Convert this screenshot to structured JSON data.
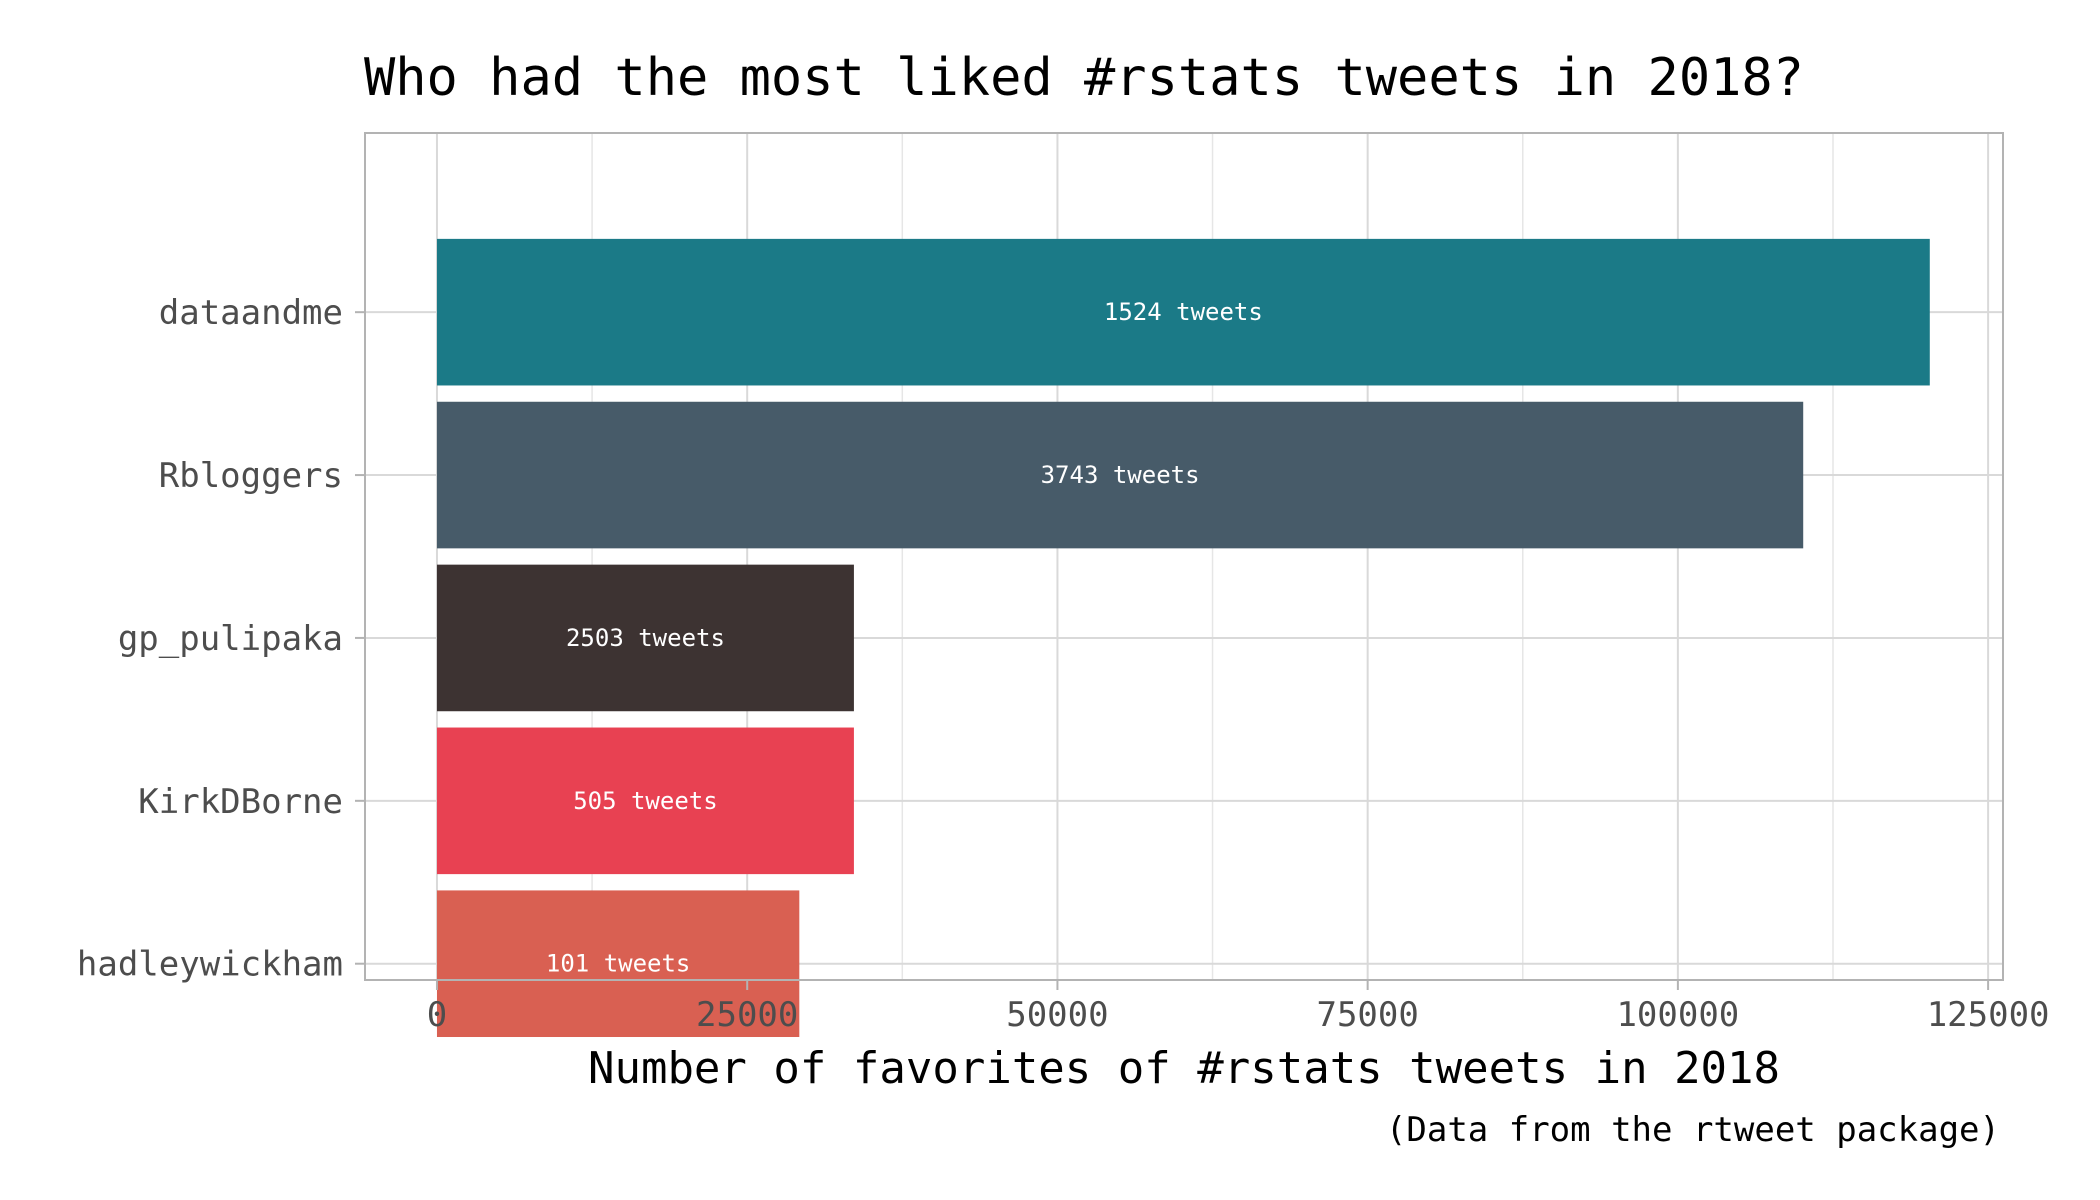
{
  "chart_data": {
    "type": "bar",
    "orientation": "horizontal",
    "title": "Who had the most liked #rstats tweets in 2018?",
    "xlabel": "Number of favorites of #rstats tweets in 2018",
    "ylabel": "",
    "caption": "(Data from the rtweet package)",
    "xlim": [
      -5800,
      126200
    ],
    "xticks": [
      "0",
      "25000",
      "50000",
      "75000",
      "100000",
      "125000"
    ],
    "xtick_values": [
      0,
      25000,
      50000,
      75000,
      100000,
      125000
    ],
    "grid": true,
    "legend": "none",
    "categories": [
      "dataandme",
      "Rbloggers",
      "gp_pulipaka",
      "KirkDBorne",
      "hadleywickham"
    ],
    "values": [
      120300,
      110100,
      33600,
      33600,
      29200
    ],
    "data_labels": [
      "1524 tweets",
      "3743 tweets",
      "2503 tweets",
      "505 tweets",
      "101 tweets"
    ],
    "colors": [
      "#1b7a87",
      "#475b69",
      "#3d3332",
      "#e84152",
      "#d96052"
    ]
  }
}
